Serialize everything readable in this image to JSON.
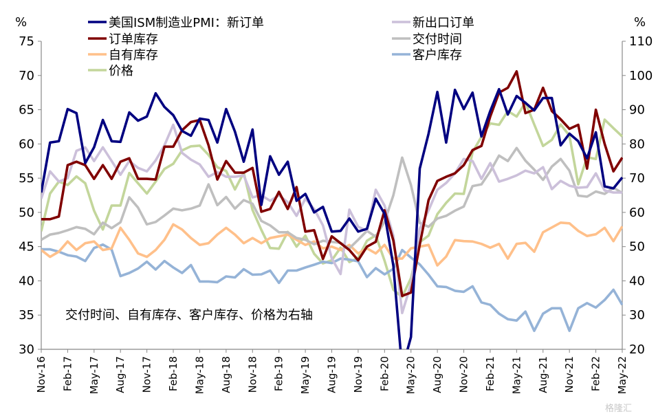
{
  "chart_data": {
    "type": "line",
    "left_unit": "%",
    "right_unit": "%",
    "left_ylim": [
      30,
      75
    ],
    "left_ticks": [
      30,
      35,
      40,
      45,
      50,
      55,
      60,
      65,
      70,
      75
    ],
    "right_ylim": [
      20,
      110
    ],
    "right_ticks": [
      20,
      30,
      40,
      50,
      60,
      70,
      80,
      90,
      100,
      110
    ],
    "x_start": "Nov-16",
    "x_tick_labels": [
      "Nov-16",
      "Feb-17",
      "May-17",
      "Aug-17",
      "Nov-17",
      "Feb-18",
      "May-18",
      "Aug-18",
      "Nov-18",
      "Feb-19",
      "May-19",
      "Aug-19",
      "Nov-19",
      "Feb-20",
      "May-20",
      "Aug-20",
      "Nov-20",
      "Feb-21",
      "May-21",
      "Aug-21",
      "Nov-21",
      "Feb-22",
      "May-22"
    ],
    "annotation": "交付时间、自有库存、客户库存、价格为右轴",
    "grid": false,
    "legend_placement": "top",
    "series": [
      {
        "name": "美国ISM制造业PMI：新订单",
        "axis": "left",
        "color": "#000080",
        "values": [
          52.9,
          60.2,
          60.4,
          65.1,
          64.5,
          57.2,
          59.5,
          63.5,
          60.4,
          60.3,
          64.6,
          63.4,
          64.0,
          67.4,
          65.4,
          64.2,
          61.9,
          61.2,
          63.7,
          63.5,
          60.2,
          65.1,
          61.8,
          57.4,
          62.1,
          51.1,
          58.2,
          55.5,
          57.4,
          51.7,
          52.7,
          50.0,
          50.8,
          47.2,
          47.3,
          49.1,
          47.2,
          47.6,
          52.0,
          49.8,
          42.2,
          27.1,
          31.8,
          56.4,
          61.5,
          67.6,
          60.2,
          67.9,
          65.1,
          67.5,
          61.1,
          64.8,
          68.0,
          64.3,
          67.0,
          66.0,
          64.9,
          66.7,
          66.7,
          59.8,
          61.5,
          60.4,
          57.9,
          61.7,
          53.8,
          53.5,
          55.1
        ]
      },
      {
        "name": "新出口订单",
        "axis": "left",
        "color": "#CCC0DA",
        "values": [
          52.0,
          56.0,
          54.5,
          55.0,
          59.0,
          59.5,
          57.5,
          59.5,
          57.5,
          55.5,
          57.5,
          56.5,
          56.0,
          57.6,
          59.8,
          62.8,
          58.7,
          57.7,
          57.0,
          55.2,
          55.9,
          55.2,
          55.2,
          55.4,
          52.2,
          52.5,
          51.7,
          52.5,
          51.5,
          49.5,
          52.0,
          50.5,
          48.1,
          43.3,
          41.0,
          50.4,
          47.9,
          47.3,
          53.3,
          51.0,
          46.6,
          35.3,
          39.5,
          47.6,
          50.3,
          53.3,
          54.3,
          55.7,
          57.8,
          57.5,
          54.9,
          57.2,
          54.5,
          54.9,
          55.4,
          56.1,
          55.7,
          56.6,
          53.4,
          54.6,
          53.9,
          53.6,
          53.7,
          55.7,
          53.2,
          52.9,
          52.9
        ]
      },
      {
        "name": "订单库存",
        "axis": "left",
        "color": "#800000",
        "values": [
          49.0,
          49.0,
          49.4,
          56.9,
          57.4,
          56.9,
          54.9,
          56.9,
          54.9,
          57.4,
          57.9,
          54.9,
          54.9,
          54.8,
          59.6,
          59.6,
          62.0,
          63.2,
          63.5,
          59.8,
          54.8,
          57.5,
          55.8,
          55.8,
          56.5,
          50.1,
          50.5,
          53.0,
          50.5,
          53.7,
          47.2,
          47.4,
          43.2,
          46.5,
          45.5,
          44.5,
          43.0,
          45.0,
          45.7,
          50.3,
          45.9,
          37.8,
          38.3,
          45.3,
          51.8,
          54.6,
          55.2,
          55.7,
          56.9,
          59.1,
          59.7,
          64.0,
          67.5,
          68.2,
          70.6,
          64.5,
          65.0,
          68.2,
          64.8,
          63.6,
          62.2,
          62.8,
          56.4,
          65.0,
          60.0,
          56.0,
          58.0
        ]
      },
      {
        "name": "交付时间",
        "axis": "right",
        "color": "#BFBFBF",
        "values": [
          52.0,
          53.5,
          54.0,
          54.8,
          55.7,
          55.2,
          53.6,
          57.0,
          55.4,
          57.1,
          64.4,
          61.4,
          56.5,
          57.2,
          59.1,
          61.1,
          60.6,
          61.1,
          62.0,
          68.2,
          62.1,
          64.5,
          61.1,
          63.6,
          62.5,
          57.5,
          56.2,
          54.2,
          54.2,
          52.5,
          52.0,
          50.7,
          51.7,
          51.4,
          51.1,
          49.5,
          52.0,
          54.6,
          52.9,
          57.3,
          65.0,
          76.0,
          68.0,
          56.9,
          55.8,
          58.2,
          59.0,
          60.5,
          61.7,
          67.7,
          68.2,
          72.0,
          76.6,
          75.0,
          78.8,
          75.1,
          72.5,
          69.5,
          73.4,
          75.6,
          72.2,
          64.9,
          64.6,
          66.1,
          65.4,
          67.2,
          65.7
        ]
      },
      {
        "name": "自有库存",
        "axis": "right",
        "color": "#FFC08A",
        "values": [
          49.0,
          47.0,
          48.5,
          51.5,
          49.0,
          51.0,
          51.5,
          49.0,
          49.5,
          55.5,
          52.0,
          48.0,
          47.0,
          49.0,
          52.0,
          56.5,
          55.0,
          52.5,
          50.5,
          51.0,
          53.5,
          55.5,
          53.5,
          51.0,
          52.5,
          51.0,
          52.5,
          53.0,
          53.5,
          52.0,
          50.5,
          51.5,
          49.5,
          50.0,
          49.0,
          50.5,
          48.0,
          49.5,
          48.0,
          50.5,
          46.5,
          46.5,
          49.5,
          50.0,
          50.5,
          44.5,
          47.1,
          51.9,
          51.6,
          51.5,
          50.8,
          49.7,
          50.8,
          46.5,
          50.8,
          51.1,
          48.5,
          54.2,
          55.6,
          57.0,
          56.8,
          54.6,
          53.1,
          53.6,
          55.5,
          51.6,
          55.9
        ]
      },
      {
        "name": "客户库存",
        "axis": "right",
        "color": "#95B3D7",
        "values": [
          49.2,
          49.2,
          48.5,
          47.5,
          47.1,
          45.8,
          49.6,
          50.6,
          49.1,
          41.4,
          42.3,
          43.6,
          45.6,
          43.3,
          45.8,
          43.9,
          42.3,
          44.6,
          39.8,
          39.8,
          39.6,
          41.3,
          41.0,
          43.4,
          41.8,
          41.9,
          43.0,
          39.4,
          43.0,
          43.0,
          43.9,
          44.7,
          45.6,
          45.2,
          46.5,
          46.2,
          45.7,
          41.1,
          43.7,
          41.9,
          43.5,
          49.0,
          46.8,
          44.8,
          41.8,
          38.4,
          38.2,
          37.1,
          36.8,
          38.4,
          33.7,
          33.0,
          30.4,
          28.8,
          28.4,
          31.0,
          25.4,
          30.4,
          32.0,
          32.0,
          25.4,
          32.0,
          33.5,
          32.2,
          34.4,
          37.4,
          33.0
        ]
      },
      {
        "name": "价格",
        "axis": "right",
        "color": "#C3D69B",
        "values": [
          54.5,
          65.5,
          69.0,
          68.0,
          70.5,
          68.5,
          60.5,
          55.0,
          62.0,
          62.0,
          71.5,
          68.5,
          65.5,
          69.0,
          72.7,
          74.2,
          78.1,
          79.3,
          79.5,
          76.8,
          73.2,
          72.1,
          66.7,
          71.6,
          60.7,
          54.9,
          49.6,
          49.4,
          54.3,
          50.0,
          53.2,
          47.9,
          45.1,
          46.0,
          49.7,
          45.5,
          46.7,
          51.7,
          53.3,
          45.9,
          37.4,
          35.3,
          40.8,
          51.3,
          53.2,
          59.5,
          62.8,
          65.5,
          65.4,
          77.6,
          82.1,
          86.0,
          85.6,
          89.6,
          88.0,
          92.1,
          85.7,
          79.4,
          81.2,
          85.7,
          82.4,
          68.2,
          76.1,
          75.6,
          87.1,
          84.6,
          82.2
        ]
      }
    ]
  },
  "watermark": "格隆汇"
}
